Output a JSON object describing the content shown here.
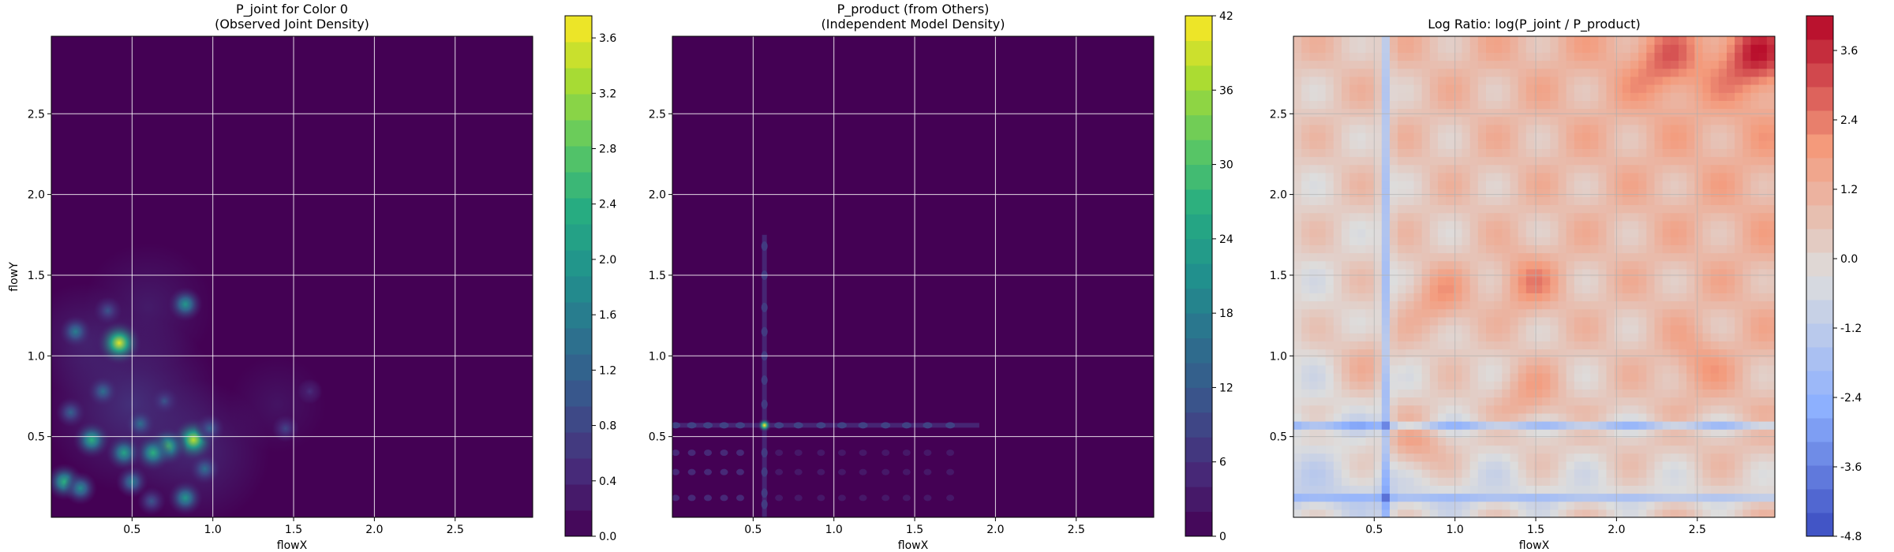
{
  "chart_data": [
    {
      "type": "heatmap",
      "title": "P_joint for Color 0\n(Observed Joint Density)",
      "xlabel": "flowX",
      "ylabel": "flowY",
      "xlim": [
        0.0,
        2.98
      ],
      "ylim": [
        0.0,
        2.98
      ],
      "xticks": [
        "0.5",
        "1.0",
        "1.5",
        "2.0",
        "2.5"
      ],
      "yticks": [
        "0.5",
        "1.0",
        "1.5",
        "2.0",
        "2.5"
      ],
      "grid": true,
      "colormap": "viridis",
      "colorbar": {
        "range": [
          0.0,
          3.76
        ],
        "levels": 20,
        "ticks": [
          "0.0",
          "0.4",
          "0.8",
          "1.2",
          "1.6",
          "2.0",
          "2.4",
          "2.8",
          "3.2",
          "3.6"
        ]
      },
      "hotspots": [
        {
          "x": 0.42,
          "y": 1.08,
          "value": 3.6
        },
        {
          "x": 0.83,
          "y": 1.32,
          "value": 2.0
        },
        {
          "x": 0.88,
          "y": 0.48,
          "value": 3.4
        },
        {
          "x": 0.72,
          "y": 0.44,
          "value": 2.6
        },
        {
          "x": 0.63,
          "y": 0.4,
          "value": 2.4
        },
        {
          "x": 0.45,
          "y": 0.4,
          "value": 2.2
        },
        {
          "x": 0.25,
          "y": 0.48,
          "value": 2.4
        },
        {
          "x": 0.08,
          "y": 0.22,
          "value": 2.4
        },
        {
          "x": 0.18,
          "y": 0.18,
          "value": 1.8
        },
        {
          "x": 0.83,
          "y": 0.12,
          "value": 2.0
        },
        {
          "x": 0.55,
          "y": 0.58,
          "value": 1.4
        },
        {
          "x": 0.15,
          "y": 1.15,
          "value": 1.6
        },
        {
          "x": 0.32,
          "y": 0.78,
          "value": 1.4
        },
        {
          "x": 0.5,
          "y": 0.22,
          "value": 1.6
        },
        {
          "x": 0.98,
          "y": 0.55,
          "value": 1.2
        },
        {
          "x": 0.7,
          "y": 0.72,
          "value": 1.0
        },
        {
          "x": 0.35,
          "y": 1.28,
          "value": 1.0
        },
        {
          "x": 0.12,
          "y": 0.65,
          "value": 1.2
        },
        {
          "x": 1.45,
          "y": 0.55,
          "value": 0.8
        },
        {
          "x": 1.6,
          "y": 0.78,
          "value": 0.5
        },
        {
          "x": 0.95,
          "y": 0.3,
          "value": 1.4
        },
        {
          "x": 0.62,
          "y": 0.1,
          "value": 1.0
        }
      ]
    },
    {
      "type": "heatmap",
      "title": "P_product (from Others)\n(Independent Model Density)",
      "xlabel": "flowX",
      "ylabel": "",
      "xlim": [
        0.0,
        2.98
      ],
      "ylim": [
        0.0,
        2.98
      ],
      "xticks": [
        "0.5",
        "1.0",
        "1.5",
        "2.0",
        "2.5"
      ],
      "yticks": [
        "0.5",
        "1.0",
        "1.5",
        "2.0",
        "2.5"
      ],
      "grid": true,
      "colormap": "viridis",
      "colorbar": {
        "range": [
          0,
          42
        ],
        "levels": 21,
        "ticks": [
          "0",
          "6",
          "12",
          "18",
          "24",
          "30",
          "36",
          "42"
        ]
      },
      "marginal_peak": {
        "x": 0.57,
        "y": 0.57,
        "value": 41
      },
      "x_marginal_bumps": [
        0.02,
        0.12,
        0.22,
        0.32,
        0.42,
        0.66,
        0.78,
        0.92,
        1.05,
        1.18,
        1.32,
        1.45,
        1.58,
        1.72
      ],
      "y_marginal_bumps": [
        0.08,
        0.15,
        0.28,
        0.4,
        0.7,
        0.85,
        1.0,
        1.15,
        1.3,
        1.5,
        1.68
      ]
    },
    {
      "type": "heatmap",
      "title": "Log Ratio: log(P_joint / P_product)",
      "xlabel": "flowX",
      "ylabel": "",
      "xlim": [
        0.0,
        2.98
      ],
      "ylim": [
        0.0,
        2.98
      ],
      "xticks": [
        "0.5",
        "1.0",
        "1.5",
        "2.0",
        "2.5"
      ],
      "yticks": [
        "0.5",
        "1.0",
        "1.5",
        "2.0",
        "2.5"
      ],
      "grid": true,
      "colormap": "coolwarm",
      "colorbar": {
        "range": [
          -4.8,
          4.2
        ],
        "levels": 22,
        "ticks": [
          "-4.8",
          "-3.6",
          "-2.4",
          "-1.2",
          "0.0",
          "1.2",
          "2.4",
          "3.6"
        ]
      },
      "positive_regions": [
        {
          "x": 2.85,
          "y": 2.85,
          "value": 3.6
        },
        {
          "x": 2.3,
          "y": 2.8,
          "value": 2.4
        },
        {
          "x": 1.45,
          "y": 1.45,
          "value": 2.4
        },
        {
          "x": 0.9,
          "y": 1.35,
          "value": 2.4
        },
        {
          "x": 0.75,
          "y": 0.45,
          "value": 2.6
        },
        {
          "x": 1.45,
          "y": 0.75,
          "value": 2.0
        },
        {
          "x": 2.5,
          "y": 0.95,
          "value": 1.6
        },
        {
          "x": 0.45,
          "y": 1.0,
          "value": 1.6
        }
      ],
      "negative_bands": [
        {
          "axis": "x",
          "at": 0.57,
          "value": -4.0
        },
        {
          "axis": "y",
          "at": 0.57,
          "value": -4.0
        },
        {
          "axis": "y",
          "at": 0.12,
          "value": -3.0
        }
      ]
    }
  ]
}
